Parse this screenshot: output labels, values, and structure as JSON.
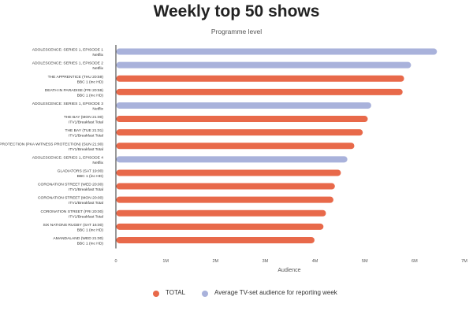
{
  "chart_data": {
    "type": "bar",
    "orientation": "horizontal",
    "title": "Weekly top 50 shows",
    "subtitle": "Programme level",
    "xlabel": "Audience",
    "ylabel": "",
    "xlim": [
      0,
      7000000
    ],
    "x_ticks": [
      0,
      1000000,
      2000000,
      3000000,
      4000000,
      5000000,
      6000000,
      7000000
    ],
    "x_tick_labels": [
      "0",
      "1M",
      "2M",
      "3M",
      "4M",
      "5M",
      "6M",
      "7M"
    ],
    "grid": false,
    "legend_position": "bottom",
    "legend": [
      {
        "label": "TOTAL",
        "color": "#e8694a"
      },
      {
        "label": "Average TV-set audience for reporting week",
        "color": "#a9b2db"
      }
    ],
    "bars": [
      {
        "programme": "ADOLESCENCE: SERIES 1, EPISODE 1",
        "channel": "Netflix",
        "value": 6450000,
        "series": "Average TV-set audience for reporting week"
      },
      {
        "programme": "ADOLESCENCE: SERIES 1, EPISODE 2",
        "channel": "Netflix",
        "value": 5930000,
        "series": "Average TV-set audience for reporting week"
      },
      {
        "programme": "THE APPRENTICE (THU 20:59)",
        "channel": "BBC 1 (inc HD)",
        "value": 5790000,
        "series": "TOTAL"
      },
      {
        "programme": "DEATH IN PARADISE (FRI 20:59)",
        "channel": "BBC 1 (inc HD)",
        "value": 5760000,
        "series": "TOTAL"
      },
      {
        "programme": "ADOLESCENCE: SERIES 1, EPISODE 3",
        "channel": "Netflix",
        "value": 5130000,
        "series": "Average TV-set audience for reporting week"
      },
      {
        "programme": "THE BAY (MON 21:00)",
        "channel": "ITV1/Breakfast Total",
        "value": 5060000,
        "series": "TOTAL"
      },
      {
        "programme": "THE BAY (TUE 21:01)",
        "channel": "ITV1/Breakfast Total",
        "value": 4960000,
        "series": "TOTAL"
      },
      {
        "programme": "PROTECTION (PKA WITNESS PROTECTION) (SUN 21:00)",
        "channel": "ITV1/Breakfast Total",
        "value": 4790000,
        "series": "TOTAL"
      },
      {
        "programme": "ADOLESCENCE: SERIES 1, EPISODE 4",
        "channel": "Netflix",
        "value": 4650000,
        "series": "Average TV-set audience for reporting week"
      },
      {
        "programme": "GLADIATORS (SAT 19:00)",
        "channel": "BBC 1 (inc HD)",
        "value": 4520000,
        "series": "TOTAL"
      },
      {
        "programme": "CORONATION STREET (WED 20:00)",
        "channel": "ITV1/Breakfast Total",
        "value": 4400000,
        "series": "TOTAL"
      },
      {
        "programme": "CORONATION STREET (MON 20:00)",
        "channel": "ITV1/Breakfast Total",
        "value": 4370000,
        "series": "TOTAL"
      },
      {
        "programme": "CORONATION STREET (FRI 20:00)",
        "channel": "ITV1/Breakfast Total",
        "value": 4220000,
        "series": "TOTAL"
      },
      {
        "programme": "SIX NATIONS RUGBY (SAT 16:00)",
        "channel": "BBC 1 (inc HD)",
        "value": 4170000,
        "series": "TOTAL"
      },
      {
        "programme": "AMANDALAND (WED 21:00)",
        "channel": "BBC 1 (inc HD)",
        "value": 3990000,
        "series": "TOTAL"
      }
    ]
  }
}
